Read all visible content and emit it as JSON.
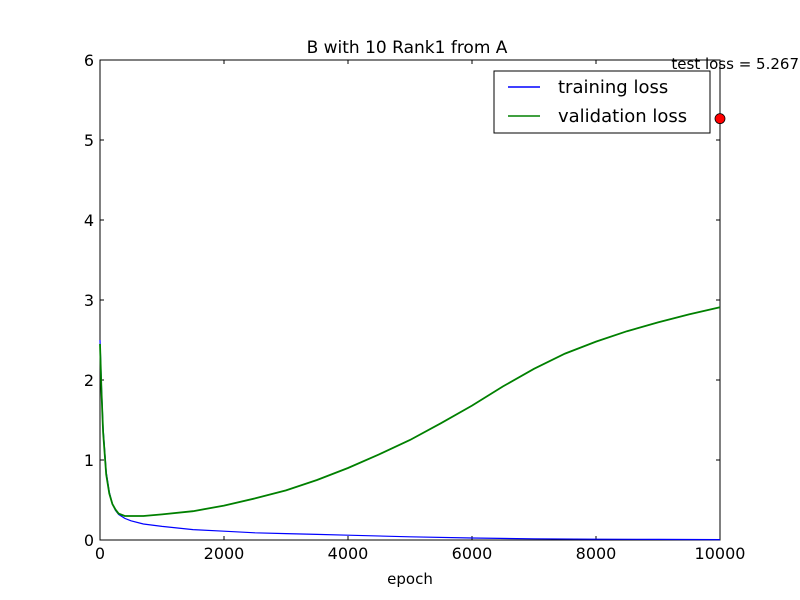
{
  "chart_data": {
    "type": "line",
    "title": "B with 10 Rank1 from A",
    "xlabel": "epoch",
    "ylabel": "",
    "xlim": [
      0,
      10000
    ],
    "ylim": [
      0,
      6
    ],
    "xticks": [
      "0",
      "2000",
      "4000",
      "6000",
      "8000",
      "10000"
    ],
    "yticks": [
      "0",
      "1",
      "2",
      "3",
      "4",
      "5",
      "6"
    ],
    "grid": false,
    "legend_position": "top-right",
    "series": [
      {
        "name": "training loss",
        "color": "#0000ff",
        "x": [
          0,
          25,
          50,
          100,
          150,
          200,
          250,
          300,
          400,
          500,
          700,
          1000,
          1500,
          2000,
          2500,
          3000,
          3500,
          4000,
          5000,
          6000,
          7000,
          8000,
          9000,
          10000
        ],
        "y": [
          2.5,
          1.9,
          1.4,
          0.85,
          0.6,
          0.45,
          0.37,
          0.32,
          0.27,
          0.24,
          0.2,
          0.17,
          0.13,
          0.11,
          0.09,
          0.08,
          0.07,
          0.06,
          0.04,
          0.025,
          0.015,
          0.01,
          0.007,
          0.005
        ]
      },
      {
        "name": "validation loss",
        "color": "#008000",
        "x": [
          0,
          25,
          50,
          100,
          150,
          200,
          250,
          300,
          400,
          500,
          700,
          1000,
          1500,
          2000,
          2500,
          3000,
          3500,
          4000,
          4500,
          5000,
          5500,
          6000,
          6500,
          7000,
          7500,
          8000,
          8500,
          9000,
          9500,
          10000
        ],
        "y": [
          2.45,
          1.85,
          1.35,
          0.82,
          0.58,
          0.45,
          0.38,
          0.33,
          0.3,
          0.3,
          0.3,
          0.32,
          0.36,
          0.43,
          0.52,
          0.62,
          0.75,
          0.9,
          1.07,
          1.25,
          1.46,
          1.68,
          1.92,
          2.14,
          2.33,
          2.48,
          2.61,
          2.72,
          2.82,
          2.91
        ]
      }
    ],
    "points": [
      {
        "name": "test loss",
        "x": 10000,
        "y": 5.267,
        "color": "#ff0000"
      }
    ],
    "annotations": [
      {
        "text": "test loss = 5.267",
        "x": 10000,
        "y": 5.95
      }
    ]
  }
}
